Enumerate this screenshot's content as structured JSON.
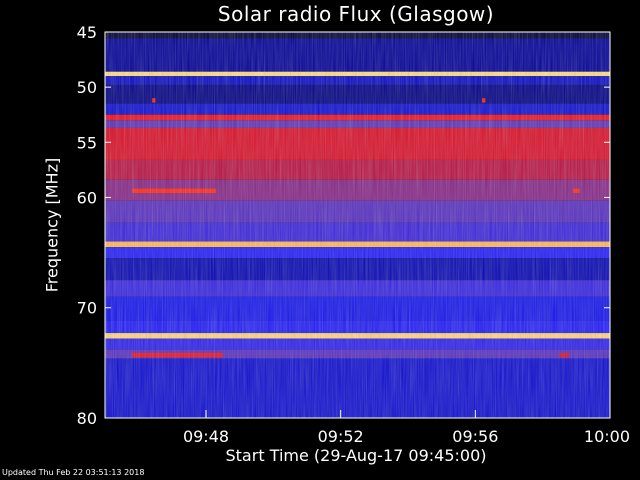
{
  "chart_data": {
    "type": "heatmap",
    "title": "Solar radio Flux (Glasgow)",
    "xlabel": "Start Time (29-Aug-17 09:45:00)",
    "ylabel": "Frequency [MHz]",
    "x_start": "09:45:00",
    "x_end": "10:00:00",
    "xlim_minutes": [
      0,
      15
    ],
    "ylim": [
      45,
      80
    ],
    "y_inverted": true,
    "x_ticks": [
      {
        "label": "09:48",
        "minute": 3
      },
      {
        "label": "09:52",
        "minute": 7
      },
      {
        "label": "09:56",
        "minute": 11
      },
      {
        "label": "10:00",
        "minute": 15
      }
    ],
    "y_ticks": [
      {
        "label": "45",
        "value": 45
      },
      {
        "label": "50",
        "value": 50
      },
      {
        "label": "55",
        "value": 55
      },
      {
        "label": "60",
        "value": 60
      },
      {
        "label": "70",
        "value": 70
      },
      {
        "label": "80",
        "value": 80
      }
    ],
    "frequency_bands": [
      {
        "from": 45.0,
        "to": 45.6,
        "level": 0.04
      },
      {
        "from": 45.6,
        "to": 48.6,
        "level": 0.14
      },
      {
        "from": 48.6,
        "to": 49.0,
        "level": 0.97
      },
      {
        "from": 49.0,
        "to": 49.8,
        "level": 0.2
      },
      {
        "from": 49.8,
        "to": 51.5,
        "level": 0.12
      },
      {
        "from": 51.5,
        "to": 52.5,
        "level": 0.22
      },
      {
        "from": 52.5,
        "to": 53.0,
        "level": 0.68
      },
      {
        "from": 53.0,
        "to": 53.7,
        "level": 0.42
      },
      {
        "from": 53.7,
        "to": 56.6,
        "level": 0.63
      },
      {
        "from": 56.6,
        "to": 58.4,
        "level": 0.56
      },
      {
        "from": 58.4,
        "to": 60.3,
        "level": 0.48
      },
      {
        "from": 60.3,
        "to": 62.3,
        "level": 0.4
      },
      {
        "from": 62.3,
        "to": 64.0,
        "level": 0.35
      },
      {
        "from": 64.0,
        "to": 64.5,
        "level": 0.92
      },
      {
        "from": 64.5,
        "to": 65.5,
        "level": 0.3
      },
      {
        "from": 65.5,
        "to": 67.5,
        "level": 0.18
      },
      {
        "from": 67.5,
        "to": 69.0,
        "level": 0.34
      },
      {
        "from": 69.0,
        "to": 71.2,
        "level": 0.26
      },
      {
        "from": 71.2,
        "to": 72.3,
        "level": 0.3
      },
      {
        "from": 72.3,
        "to": 72.8,
        "level": 0.96
      },
      {
        "from": 72.8,
        "to": 73.8,
        "level": 0.32
      },
      {
        "from": 73.8,
        "to": 74.6,
        "level": 0.4
      },
      {
        "from": 74.6,
        "to": 80.0,
        "level": 0.22
      }
    ],
    "features": [
      {
        "minute_start": 0.8,
        "minute_end": 3.3,
        "freq_from": 59.2,
        "freq_to": 59.6,
        "level": 0.74
      },
      {
        "minute_start": 13.9,
        "minute_end": 14.1,
        "freq_from": 59.2,
        "freq_to": 59.6,
        "level": 0.74
      },
      {
        "minute_start": 0.8,
        "minute_end": 3.5,
        "freq_from": 74.1,
        "freq_to": 74.5,
        "level": 0.68
      },
      {
        "minute_start": 13.5,
        "minute_end": 13.8,
        "freq_from": 74.1,
        "freq_to": 74.5,
        "level": 0.62
      },
      {
        "minute_start": 1.4,
        "minute_end": 1.5,
        "freq_from": 51.0,
        "freq_to": 51.4,
        "level": 0.72
      },
      {
        "minute_start": 11.2,
        "minute_end": 11.3,
        "freq_from": 51.0,
        "freq_to": 51.4,
        "level": 0.72
      }
    ],
    "colormap": [
      "#000010",
      "#00009a",
      "#1a1aff",
      "#6633b0",
      "#c0103a",
      "#ff1010",
      "#ff8a20",
      "#fff0a0"
    ]
  },
  "footer": "Updated Thu Feb 22 03:51:13 2018"
}
